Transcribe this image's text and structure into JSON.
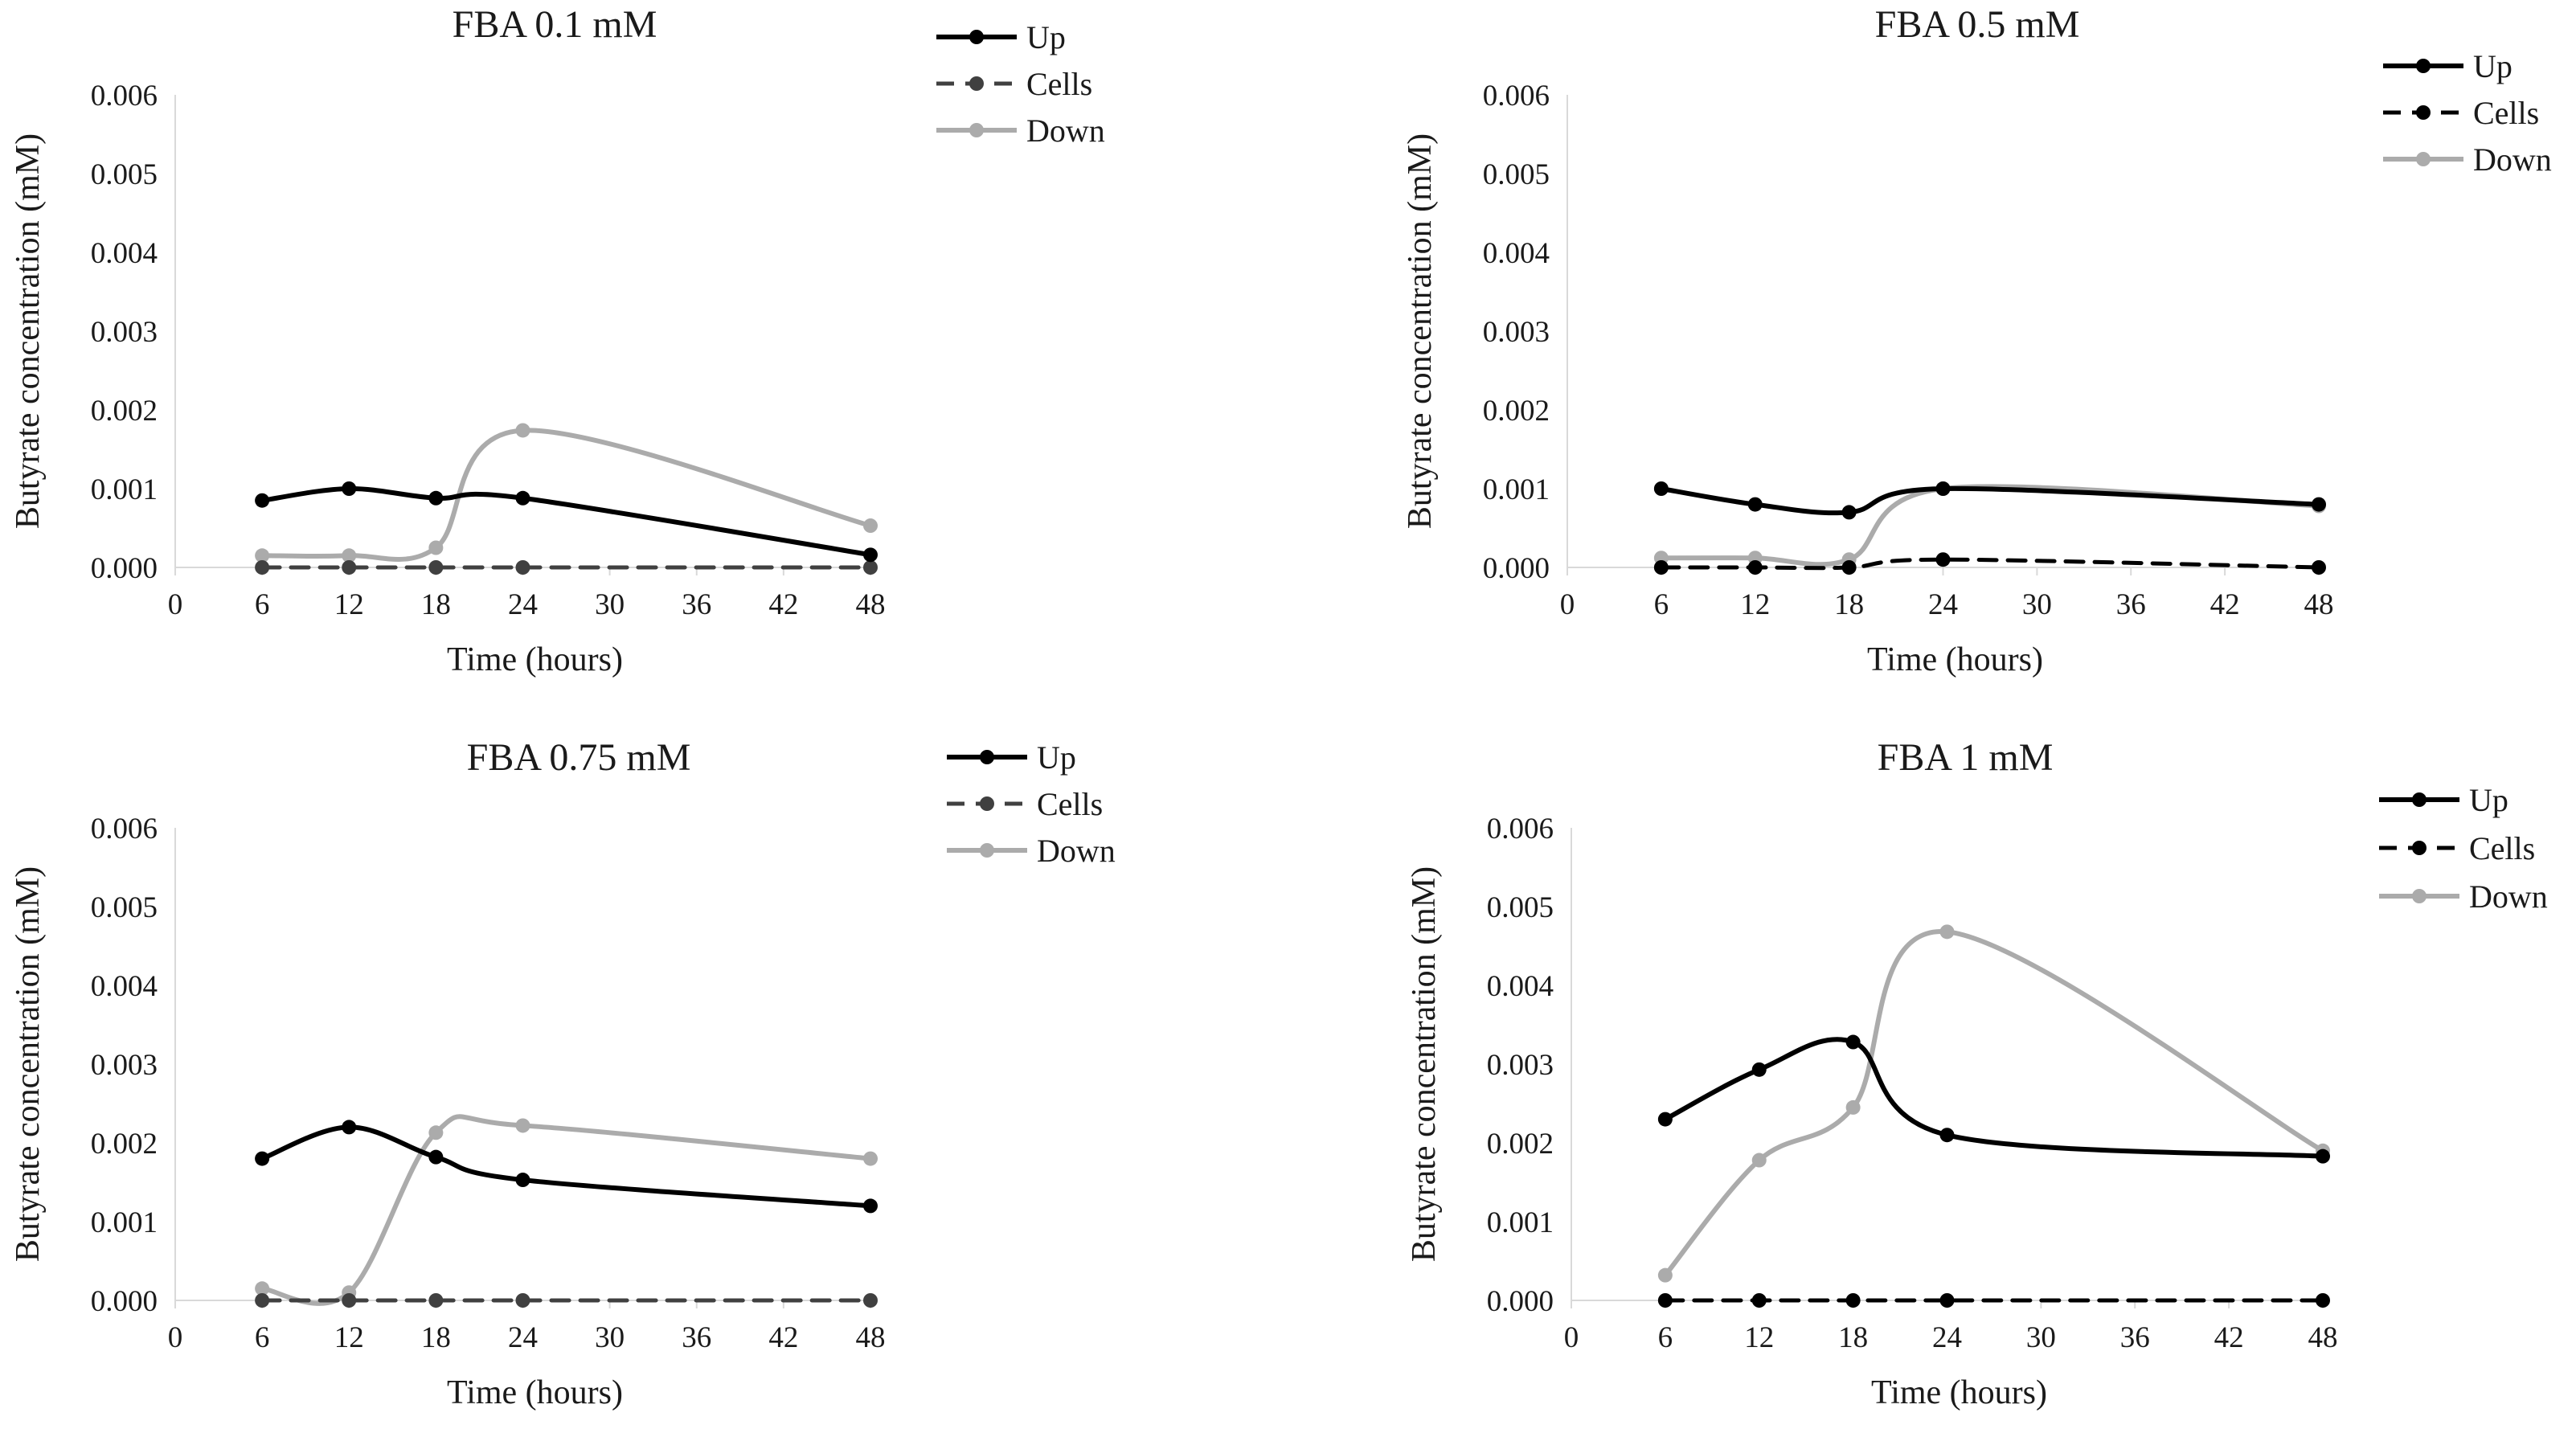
{
  "chart_data": [
    {
      "type": "line",
      "title": "FBA 0.1 mM",
      "xlabel": "Time (hours)",
      "ylabel": "Butyrate concentration (mM)",
      "xlim": [
        0,
        48
      ],
      "ylim": [
        0,
        0.006
      ],
      "x_ticks": [
        "0",
        "6",
        "12",
        "18",
        "24",
        "30",
        "36",
        "42",
        "48"
      ],
      "y_ticks": [
        "0.000",
        "0.001",
        "0.002",
        "0.003",
        "0.004",
        "0.005",
        "0.006"
      ],
      "legend_position": "top-right",
      "grid": false,
      "x": [
        6,
        12,
        18,
        24,
        48
      ],
      "series": [
        {
          "name": "Up",
          "color": "#000000",
          "dashed": false,
          "values": [
            0.00085,
            0.001,
            0.00088,
            0.00088,
            0.00016
          ]
        },
        {
          "name": "Cells",
          "color": "#404040",
          "dashed": true,
          "values": [
            0,
            0,
            0,
            0,
            0
          ]
        },
        {
          "name": "Down",
          "color": "#ababab",
          "dashed": false,
          "values": [
            0.00015,
            0.00015,
            0.00025,
            0.00174,
            0.00053
          ]
        }
      ]
    },
    {
      "type": "line",
      "title": "FBA 0.5 mM",
      "xlabel": "Time (hours)",
      "ylabel": "Butyrate concentration (mM)",
      "xlim": [
        0,
        48
      ],
      "ylim": [
        0,
        0.006
      ],
      "x_ticks": [
        "0",
        "6",
        "12",
        "18",
        "24",
        "30",
        "36",
        "42",
        "48"
      ],
      "y_ticks": [
        "0.000",
        "0.001",
        "0.002",
        "0.003",
        "0.004",
        "0.005",
        "0.006"
      ],
      "legend_position": "top-right",
      "grid": false,
      "x": [
        6,
        12,
        18,
        24,
        48
      ],
      "series": [
        {
          "name": "Up",
          "color": "#000000",
          "dashed": false,
          "values": [
            0.001,
            0.0008,
            0.0007,
            0.001,
            0.0008
          ]
        },
        {
          "name": "Cells",
          "color": "#000000",
          "dashed": true,
          "values": [
            0,
            0,
            0,
            0.0001,
            0
          ]
        },
        {
          "name": "Down",
          "color": "#ababab",
          "dashed": false,
          "values": [
            0.00012,
            0.00012,
            0.0001,
            0.001,
            0.00078
          ]
        }
      ]
    },
    {
      "type": "line",
      "title": "FBA 0.75 mM",
      "xlabel": "Time (hours)",
      "ylabel": "Butyrate concentration (mM)",
      "xlim": [
        0,
        48
      ],
      "ylim": [
        0,
        0.006
      ],
      "x_ticks": [
        "0",
        "6",
        "12",
        "18",
        "24",
        "30",
        "36",
        "42",
        "48"
      ],
      "y_ticks": [
        "0.000",
        "0.001",
        "0.002",
        "0.003",
        "0.004",
        "0.005",
        "0.006"
      ],
      "legend_position": "top-right",
      "grid": false,
      "x": [
        6,
        12,
        18,
        24,
        48
      ],
      "series": [
        {
          "name": "Up",
          "color": "#000000",
          "dashed": false,
          "values": [
            0.0018,
            0.0022,
            0.00182,
            0.00153,
            0.0012
          ]
        },
        {
          "name": "Cells",
          "color": "#404040",
          "dashed": true,
          "values": [
            0,
            0,
            0,
            0,
            0
          ]
        },
        {
          "name": "Down",
          "color": "#ababab",
          "dashed": false,
          "values": [
            0.00015,
            0.0001,
            0.00213,
            0.00222,
            0.0018
          ]
        }
      ]
    },
    {
      "type": "line",
      "title": "FBA 1 mM",
      "xlabel": "Time (hours)",
      "ylabel": "Butyrate concentration (mM)",
      "xlim": [
        0,
        48
      ],
      "ylim": [
        0,
        0.006
      ],
      "x_ticks": [
        "0",
        "6",
        "12",
        "18",
        "24",
        "30",
        "36",
        "42",
        "48"
      ],
      "y_ticks": [
        "0.000",
        "0.001",
        "0.002",
        "0.003",
        "0.004",
        "0.005",
        "0.006"
      ],
      "legend_position": "top-right",
      "grid": false,
      "x": [
        6,
        12,
        18,
        24,
        48
      ],
      "series": [
        {
          "name": "Up",
          "color": "#000000",
          "dashed": false,
          "values": [
            0.0023,
            0.00293,
            0.00328,
            0.0021,
            0.00183
          ]
        },
        {
          "name": "Cells",
          "color": "#000000",
          "dashed": true,
          "values": [
            0,
            0,
            0,
            0,
            0
          ]
        },
        {
          "name": "Down",
          "color": "#ababab",
          "dashed": false,
          "values": [
            0.00032,
            0.00178,
            0.00245,
            0.00468,
            0.0019
          ]
        }
      ]
    }
  ]
}
